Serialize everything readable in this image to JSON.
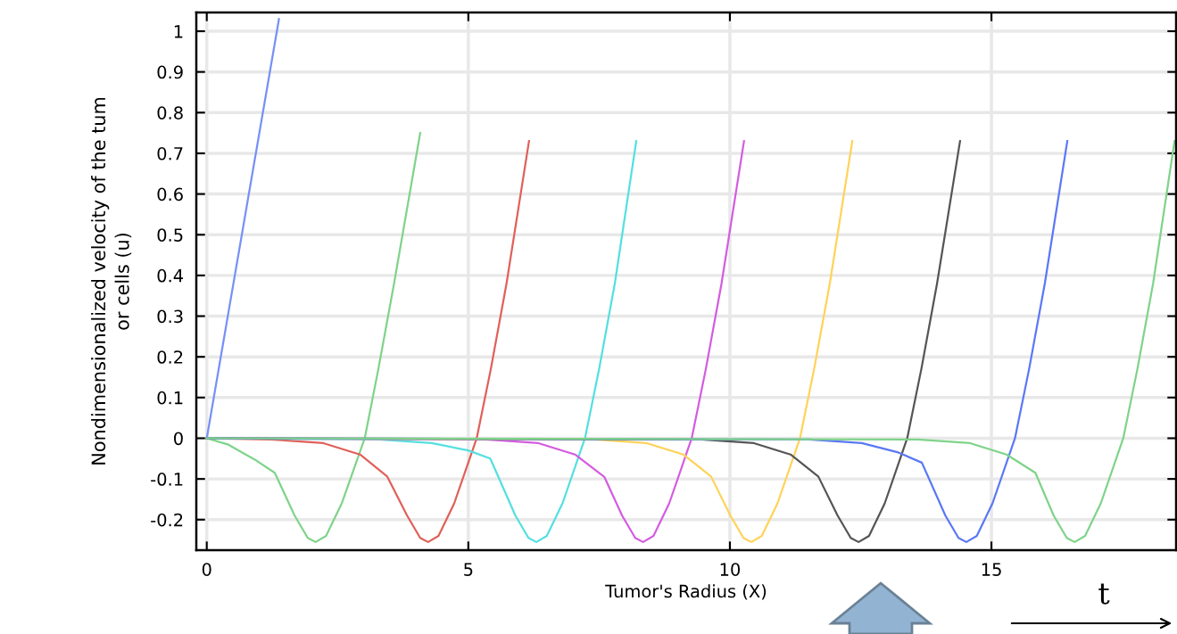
{
  "chart_data": {
    "type": "line",
    "xlabel": "Tumor's Radius (X)",
    "ylabel": "Nondimensionalized velocity of the tum\nor cells (u)",
    "annotations": [
      "t"
    ],
    "xlim": [
      -0.2,
      18.53
    ],
    "ylim": [
      -0.275,
      1.046
    ],
    "xticks": [
      0,
      5,
      10,
      15
    ],
    "yticks": [
      -0.2,
      -0.1,
      0,
      0.1,
      0.2,
      0.3,
      0.4,
      0.5,
      0.6,
      0.7,
      0.8,
      0.9,
      1
    ],
    "grid": true,
    "marker": "none",
    "line_style": "solid",
    "series": [
      {
        "color": "#7790f6",
        "x": [
          0,
          1.38
        ],
        "values": [
          0,
          1.03
        ]
      },
      {
        "color": "#7fd38a",
        "x": [
          0,
          0.4,
          0.95,
          1.3,
          1.68,
          1.93,
          2.08,
          2.28,
          2.58,
          3.02,
          3.28,
          3.58,
          4.08
        ],
        "values": [
          0,
          -0.015,
          -0.055,
          -0.085,
          -0.19,
          -0.245,
          -0.255,
          -0.24,
          -0.16,
          0,
          0.17,
          0.38,
          0.75
        ]
      },
      {
        "color": "#e0605a",
        "x": [
          0,
          1.23,
          2.23,
          2.93,
          3.45,
          3.83,
          4.08,
          4.23,
          4.43,
          4.73,
          5.16,
          5.43,
          5.73,
          6.16
        ],
        "values": [
          0,
          -0.003,
          -0.012,
          -0.04,
          -0.094,
          -0.19,
          -0.245,
          -0.255,
          -0.24,
          -0.16,
          0,
          0.17,
          0.38,
          0.73
        ]
      },
      {
        "color": "#55dfe0",
        "x": [
          0,
          3.3,
          4.3,
          5.0,
          5.42,
          5.9,
          6.15,
          6.3,
          6.5,
          6.8,
          7.23,
          7.5,
          7.8,
          8.21
        ],
        "values": [
          0,
          -0.003,
          -0.012,
          -0.03,
          -0.05,
          -0.19,
          -0.245,
          -0.255,
          -0.24,
          -0.16,
          0,
          0.17,
          0.38,
          0.73
        ]
      },
      {
        "color": "#d45ce0",
        "x": [
          0,
          5.34,
          6.34,
          7.04,
          7.6,
          7.94,
          8.19,
          8.34,
          8.54,
          8.84,
          9.27,
          9.54,
          9.84,
          10.27
        ],
        "values": [
          0,
          -0.003,
          -0.012,
          -0.04,
          -0.095,
          -0.19,
          -0.245,
          -0.255,
          -0.24,
          -0.16,
          0,
          0.17,
          0.38,
          0.73
        ]
      },
      {
        "color": "#ffd25a",
        "x": [
          0,
          7.41,
          8.41,
          9.11,
          9.64,
          10.01,
          10.26,
          10.41,
          10.61,
          10.91,
          11.34,
          11.61,
          11.91,
          12.34
        ],
        "values": [
          0,
          -0.003,
          -0.012,
          -0.04,
          -0.094,
          -0.19,
          -0.245,
          -0.255,
          -0.24,
          -0.16,
          0,
          0.17,
          0.38,
          0.73
        ]
      },
      {
        "color": "#555555",
        "x": [
          0,
          9.46,
          10.46,
          11.16,
          11.69,
          12.06,
          12.31,
          12.46,
          12.66,
          12.96,
          13.39,
          13.66,
          13.96,
          14.4
        ],
        "values": [
          0,
          -0.003,
          -0.012,
          -0.04,
          -0.094,
          -0.19,
          -0.245,
          -0.255,
          -0.24,
          -0.16,
          0,
          0.17,
          0.38,
          0.73
        ]
      },
      {
        "color": "#5a78f5",
        "x": [
          0,
          11.52,
          12.52,
          13.22,
          13.67,
          14.12,
          14.37,
          14.52,
          14.72,
          15.02,
          15.45,
          15.72,
          16.02,
          16.45
        ],
        "values": [
          0,
          -0.003,
          -0.012,
          -0.035,
          -0.06,
          -0.19,
          -0.245,
          -0.255,
          -0.24,
          -0.16,
          0,
          0.17,
          0.38,
          0.73
        ]
      },
      {
        "color": "#7fd38a",
        "x": [
          0,
          13.59,
          14.59,
          15.29,
          15.84,
          16.19,
          16.44,
          16.59,
          16.79,
          17.09,
          17.52,
          17.79,
          18.09,
          18.5
        ],
        "values": [
          0,
          -0.003,
          -0.012,
          -0.04,
          -0.085,
          -0.19,
          -0.245,
          -0.255,
          -0.24,
          -0.16,
          0,
          0.17,
          0.38,
          0.73
        ]
      }
    ]
  }
}
